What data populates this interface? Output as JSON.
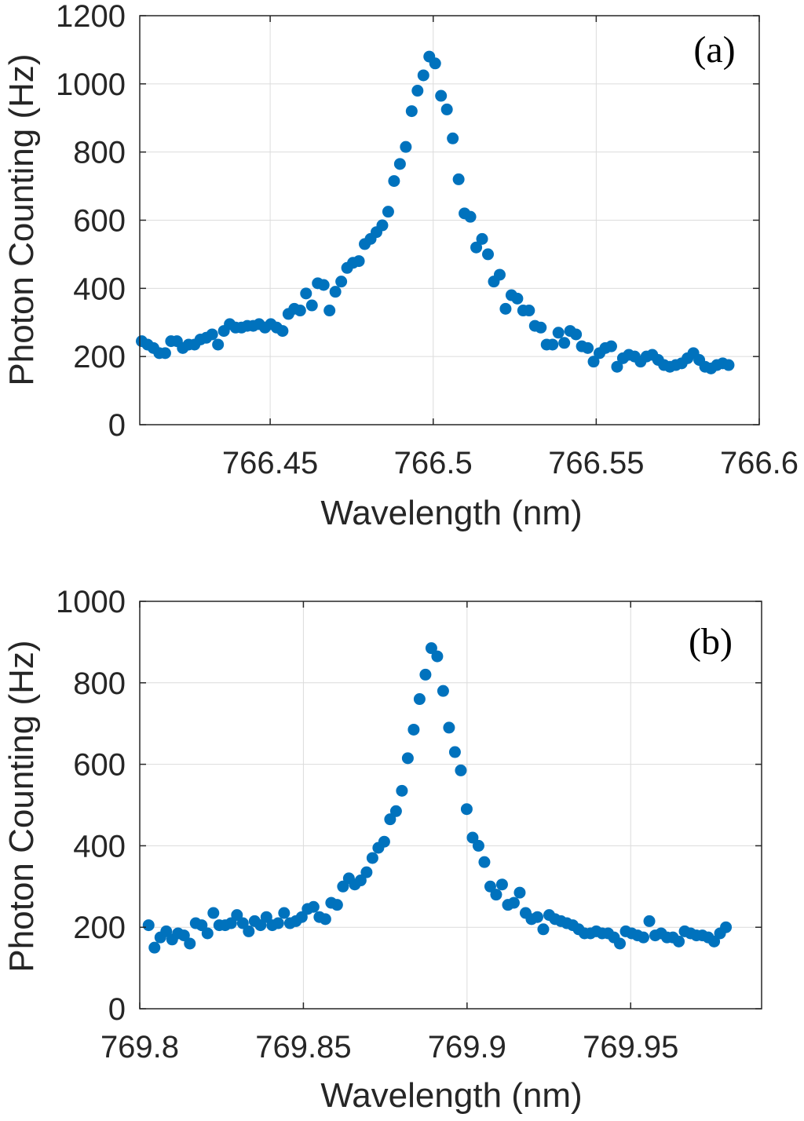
{
  "chart_data": [
    {
      "type": "scatter",
      "panel_label": "(a)",
      "xlabel": "Wavelength (nm)",
      "ylabel": "Photon Counting (Hz)",
      "xlim": [
        766.41,
        766.6
      ],
      "ylim": [
        0,
        1200
      ],
      "xticks": [
        766.45,
        766.5,
        766.55,
        766.6
      ],
      "xtick_labels": [
        "766.45",
        "766.5",
        "766.55",
        "766.6"
      ],
      "yticks": [
        0,
        200,
        400,
        600,
        800,
        1000,
        1200
      ],
      "ytick_labels": [
        "0",
        "200",
        "400",
        "600",
        "800",
        "1000",
        "1200"
      ],
      "grid": true,
      "marker_color": "#0072BD",
      "series": [
        {
          "name": "data",
          "x": [
            766.4106,
            766.4124,
            766.4142,
            766.416,
            766.4178,
            766.4196,
            766.4214,
            766.4232,
            766.425,
            766.4268,
            766.4286,
            766.4304,
            766.4322,
            766.434,
            766.4358,
            766.4376,
            766.4394,
            766.4412,
            766.443,
            766.4448,
            766.4466,
            766.4484,
            766.4502,
            766.452,
            766.4538,
            766.4556,
            766.4574,
            766.4592,
            766.461,
            766.4628,
            766.4646,
            766.4664,
            766.4682,
            766.47,
            766.4718,
            766.4736,
            766.4754,
            766.4772,
            766.479,
            766.4808,
            766.4826,
            766.4844,
            766.4862,
            766.488,
            766.4898,
            766.4916,
            766.4934,
            766.4952,
            766.497,
            766.4988,
            766.5006,
            766.5024,
            766.5042,
            766.506,
            766.5078,
            766.5096,
            766.5114,
            766.5132,
            766.515,
            766.5168,
            766.5186,
            766.5204,
            766.5222,
            766.524,
            766.5258,
            766.5276,
            766.5294,
            766.5312,
            766.533,
            766.5348,
            766.5366,
            766.5384,
            766.5402,
            766.542,
            766.5438,
            766.5456,
            766.5474,
            766.5492,
            766.551,
            766.5528,
            766.5546,
            766.5564,
            766.5582,
            766.56,
            766.5618,
            766.5636,
            766.5654,
            766.5672,
            766.569,
            766.5708,
            766.5726,
            766.5744,
            766.5762,
            766.578,
            766.5798,
            766.5816,
            766.5834,
            766.5852,
            766.587,
            766.5888,
            766.5906
          ],
          "y": [
            245,
            235,
            225,
            210,
            210,
            245,
            245,
            225,
            235,
            235,
            250,
            255,
            265,
            235,
            275,
            295,
            285,
            285,
            290,
            290,
            295,
            285,
            295,
            285,
            275,
            325,
            340,
            335,
            385,
            350,
            415,
            410,
            335,
            390,
            420,
            460,
            475,
            480,
            530,
            545,
            565,
            585,
            625,
            715,
            765,
            815,
            920,
            980,
            1025,
            1080,
            1060,
            965,
            925,
            840,
            720,
            620,
            610,
            520,
            545,
            500,
            420,
            440,
            340,
            380,
            370,
            335,
            335,
            290,
            285,
            235,
            235,
            270,
            240,
            275,
            265,
            230,
            225,
            185,
            210,
            225,
            230,
            170,
            195,
            205,
            200,
            185,
            200,
            205,
            190,
            175,
            170,
            175,
            180,
            195,
            210,
            190,
            170,
            165,
            175,
            180,
            175
          ]
        }
      ]
    },
    {
      "type": "scatter",
      "panel_label": "(b)",
      "xlabel": "Wavelength (nm)",
      "ylabel": "Photon Counting (Hz)",
      "xlim": [
        769.8,
        769.99
      ],
      "ylim": [
        0,
        1000
      ],
      "xticks": [
        769.8,
        769.85,
        769.9,
        769.95
      ],
      "xtick_labels": [
        "769.8",
        "769.85",
        "769.9",
        "769.95"
      ],
      "yticks": [
        0,
        200,
        400,
        600,
        800,
        1000
      ],
      "ytick_labels": [
        "0",
        "200",
        "400",
        "600",
        "800",
        "1000"
      ],
      "grid": true,
      "marker_color": "#0072BD",
      "series": [
        {
          "name": "data",
          "x": [
            769.8027,
            769.8045,
            769.8063,
            769.8081,
            769.8099,
            769.8117,
            769.8135,
            769.8153,
            769.8171,
            769.8189,
            769.8207,
            769.8225,
            769.8243,
            769.8261,
            769.8279,
            769.8297,
            769.8315,
            769.8333,
            769.8351,
            769.8369,
            769.8387,
            769.8405,
            769.8423,
            769.8441,
            769.8459,
            769.8477,
            769.8495,
            769.8513,
            769.8531,
            769.8549,
            769.8567,
            769.8585,
            769.8603,
            769.8621,
            769.8639,
            769.8657,
            769.8675,
            769.8693,
            769.8711,
            769.8729,
            769.8747,
            769.8765,
            769.8783,
            769.8801,
            769.8819,
            769.8837,
            769.8855,
            769.8873,
            769.8891,
            769.8909,
            769.8927,
            769.8945,
            769.8963,
            769.8981,
            769.8999,
            769.9017,
            769.9035,
            769.9053,
            769.9071,
            769.9089,
            769.9107,
            769.9125,
            769.9143,
            769.9161,
            769.9179,
            769.9197,
            769.9215,
            769.9233,
            769.9251,
            769.9269,
            769.9287,
            769.9305,
            769.9323,
            769.9341,
            769.9359,
            769.9377,
            769.9395,
            769.9413,
            769.9431,
            769.9449,
            769.9467,
            769.9485,
            769.9503,
            769.9521,
            769.9539,
            769.9557,
            769.9575,
            769.9593,
            769.9611,
            769.9629,
            769.9647,
            769.9665,
            769.9683,
            769.9701,
            769.9719,
            769.9737,
            769.9755,
            769.9773,
            769.9791
          ],
          "y": [
            205,
            150,
            175,
            190,
            170,
            185,
            180,
            160,
            210,
            205,
            185,
            235,
            205,
            205,
            210,
            230,
            210,
            190,
            215,
            205,
            225,
            205,
            210,
            235,
            210,
            215,
            225,
            245,
            250,
            225,
            220,
            260,
            255,
            300,
            320,
            305,
            315,
            335,
            370,
            395,
            410,
            465,
            485,
            535,
            615,
            685,
            760,
            820,
            885,
            865,
            780,
            690,
            630,
            585,
            490,
            420,
            400,
            360,
            300,
            280,
            305,
            255,
            260,
            285,
            235,
            220,
            225,
            195,
            230,
            220,
            215,
            210,
            205,
            195,
            185,
            185,
            190,
            185,
            185,
            175,
            160,
            190,
            185,
            180,
            175,
            215,
            180,
            185,
            175,
            175,
            165,
            190,
            185,
            180,
            180,
            175,
            165,
            185,
            200
          ]
        }
      ]
    }
  ]
}
